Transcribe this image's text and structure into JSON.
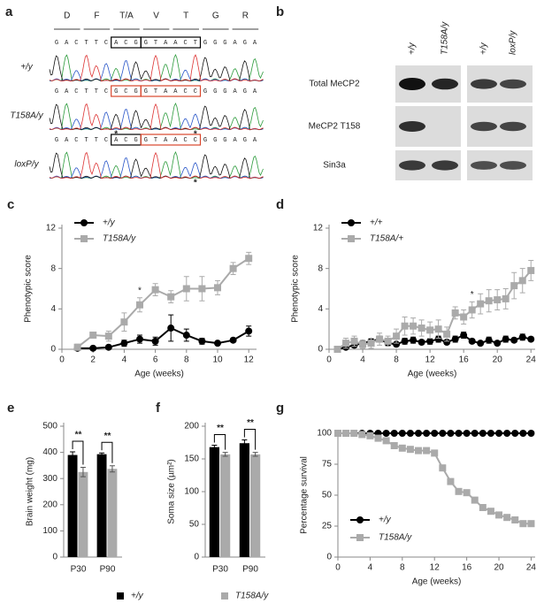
{
  "panel_a": {
    "label": "a",
    "codons": [
      "D",
      "F",
      "T/A",
      "V",
      "T",
      "G",
      "R"
    ],
    "rows": [
      {
        "name": "+/y",
        "sequence": [
          "G",
          "A",
          "C",
          "T",
          "T",
          "C",
          "A",
          "C",
          "G",
          "G",
          "T",
          "A",
          "A",
          "C",
          "T",
          "G",
          "G",
          "G",
          "A",
          "G",
          "A"
        ]
      },
      {
        "name": "T158A/y",
        "sequence": [
          "G",
          "A",
          "C",
          "T",
          "T",
          "C",
          "G",
          "C",
          "G",
          "G",
          "T",
          "A",
          "A",
          "C",
          "C",
          "G",
          "G",
          "G",
          "A",
          "G",
          "A"
        ],
        "stars": [
          "*",
          "*"
        ]
      },
      {
        "name": "loxP/y",
        "sequence": [
          "G",
          "A",
          "C",
          "T",
          "T",
          "C",
          "A",
          "C",
          "G",
          "G",
          "T",
          "A",
          "A",
          "C",
          "C",
          "G",
          "G",
          "G",
          "A",
          "G",
          "A"
        ],
        "stars": [
          "*"
        ]
      }
    ]
  },
  "panel_b": {
    "label": "b",
    "columns": [
      "+/y",
      "T158A/y",
      "+/y",
      "loxP/y"
    ],
    "rows": [
      "Total MeCP2",
      "MeCP2 T158",
      "Sin3a"
    ]
  },
  "chart_data": [
    {
      "type": "line",
      "label": "c",
      "xlabel": "Age (weeks)",
      "ylabel": "Phenotypic score",
      "x": [
        1,
        2,
        3,
        4,
        5,
        6,
        7,
        8,
        9,
        10,
        11,
        12
      ],
      "xlim": [
        0,
        12.5
      ],
      "xticks": [
        0,
        2,
        4,
        6,
        8,
        10,
        12
      ],
      "ylim": [
        0,
        12
      ],
      "yticks": [
        0,
        4,
        8,
        12
      ],
      "legend": "top-left",
      "series": [
        {
          "name": "+/y",
          "color": "#000000",
          "marker": "circle",
          "values": [
            0.1,
            0.1,
            0.2,
            0.6,
            1.0,
            0.8,
            2.1,
            1.4,
            0.8,
            0.6,
            0.9,
            1.8
          ],
          "errors": [
            0.1,
            0.1,
            0.2,
            0.3,
            0.4,
            0.4,
            1.3,
            0.6,
            0.3,
            0.2,
            0.2,
            0.5
          ]
        },
        {
          "name": "T158A/y",
          "color": "#aaaaaa",
          "marker": "square",
          "values": [
            0.2,
            1.4,
            1.3,
            2.7,
            4.4,
            5.9,
            5.2,
            6.0,
            6.0,
            6.1,
            8.0,
            9.0
          ],
          "errors": [
            0.3,
            0.2,
            0.5,
            0.9,
            0.7,
            0.6,
            0.6,
            1.2,
            1.2,
            0.7,
            0.6,
            0.6
          ]
        }
      ],
      "annotations": [
        {
          "text": "*",
          "x": 5
        }
      ]
    },
    {
      "type": "line",
      "label": "d",
      "xlabel": "Age (weeks)",
      "ylabel": "Phenotypic score",
      "x": [
        1,
        2,
        3,
        4,
        5,
        6,
        7,
        8,
        9,
        10,
        11,
        12,
        13,
        14,
        15,
        16,
        17,
        18,
        19,
        20,
        21,
        22,
        23,
        24
      ],
      "xlim": [
        0,
        24.5
      ],
      "xticks": [
        0,
        4,
        8,
        12,
        16,
        20,
        24
      ],
      "ylim": [
        0,
        12
      ],
      "yticks": [
        0,
        4,
        8,
        12
      ],
      "legend": "top-left",
      "series": [
        {
          "name": "+/+",
          "color": "#000000",
          "marker": "circle",
          "values": [
            0,
            0.2,
            0.4,
            0.6,
            0.8,
            1.0,
            0.6,
            0.5,
            0.8,
            0.9,
            0.7,
            0.8,
            1.0,
            0.7,
            1.0,
            1.4,
            0.8,
            0.6,
            0.9,
            0.6,
            1.0,
            0.9,
            1.2,
            1.0
          ],
          "errors": [
            0.1,
            0.1,
            0.2,
            0.2,
            0.2,
            0.3,
            0.2,
            0.2,
            0.3,
            0.3,
            0.2,
            0.3,
            0.3,
            0.2,
            0.3,
            0.3,
            0.2,
            0.2,
            0.3,
            0.2,
            0.3,
            0.2,
            0.3,
            0.2
          ]
        },
        {
          "name": "T158A/+",
          "color": "#aaaaaa",
          "marker": "square",
          "values": [
            0,
            0.6,
            0.8,
            0.5,
            0.6,
            1.0,
            0.8,
            1.3,
            2.3,
            2.3,
            2.1,
            1.9,
            2.0,
            1.5,
            3.6,
            3.2,
            3.9,
            4.5,
            4.8,
            4.9,
            5.0,
            6.3,
            6.8,
            7.8
          ],
          "errors": [
            0.2,
            0.5,
            0.5,
            0.4,
            0.5,
            0.6,
            0.5,
            0.7,
            0.9,
            0.8,
            0.8,
            0.8,
            0.9,
            0.7,
            0.6,
            0.7,
            0.8,
            1.0,
            1.1,
            1.0,
            1.0,
            1.3,
            1.2,
            1.0
          ]
        }
      ],
      "annotations": [
        {
          "text": "*",
          "x": 17
        }
      ]
    },
    {
      "type": "bar",
      "label": "e",
      "ylabel": "Brain weight (mg)",
      "categories": [
        "P30",
        "P90"
      ],
      "ylim": [
        0,
        500
      ],
      "yticks": [
        0,
        100,
        200,
        300,
        400,
        500
      ],
      "legend": "bottom",
      "series": [
        {
          "name": "+/y",
          "color": "#000000",
          "values": [
            390,
            393
          ],
          "errors": [
            12,
            5
          ]
        },
        {
          "name": "T158A/y",
          "color": "#aaaaaa",
          "values": [
            325,
            337
          ],
          "errors": [
            18,
            12
          ]
        }
      ],
      "annotations": [
        "**",
        "**"
      ]
    },
    {
      "type": "bar",
      "label": "f",
      "ylabel": "Soma size (µm²)",
      "categories": [
        "P30",
        "P90"
      ],
      "ylim": [
        0,
        200
      ],
      "yticks": [
        0,
        50,
        100,
        150,
        200
      ],
      "series": [
        {
          "color": "#000000",
          "values": [
            168,
            174
          ],
          "errors": [
            3,
            5
          ]
        },
        {
          "color": "#aaaaaa",
          "values": [
            157,
            157
          ],
          "errors": [
            3,
            3
          ]
        }
      ],
      "annotations": [
        "**",
        "**"
      ]
    },
    {
      "type": "line",
      "label": "g",
      "xlabel": "Age (weeks)",
      "ylabel": "Percentage survival",
      "x": [
        0,
        1,
        2,
        3,
        4,
        5,
        6,
        7,
        8,
        9,
        10,
        11,
        12,
        13,
        14,
        15,
        16,
        17,
        18,
        19,
        20,
        21,
        22,
        23,
        24
      ],
      "xlim": [
        0,
        24.5
      ],
      "xticks": [
        0,
        4,
        8,
        12,
        16,
        20,
        24
      ],
      "ylim": [
        0,
        100
      ],
      "yticks": [
        0,
        25,
        50,
        75,
        100
      ],
      "legend": "bottom-left",
      "series": [
        {
          "name": "+/y",
          "color": "#000000",
          "marker": "circle",
          "values": [
            100,
            100,
            100,
            100,
            100,
            100,
            100,
            100,
            100,
            100,
            100,
            100,
            100,
            100,
            100,
            100,
            100,
            100,
            100,
            100,
            100,
            100,
            100,
            100,
            100
          ]
        },
        {
          "name": "T158A/y",
          "color": "#aaaaaa",
          "marker": "square",
          "values": [
            100,
            100,
            100,
            99,
            98,
            96,
            94,
            90,
            88,
            87,
            86,
            86,
            84,
            72,
            61,
            53,
            52,
            46,
            40,
            37,
            34,
            32,
            30,
            27,
            27
          ]
        }
      ]
    }
  ]
}
